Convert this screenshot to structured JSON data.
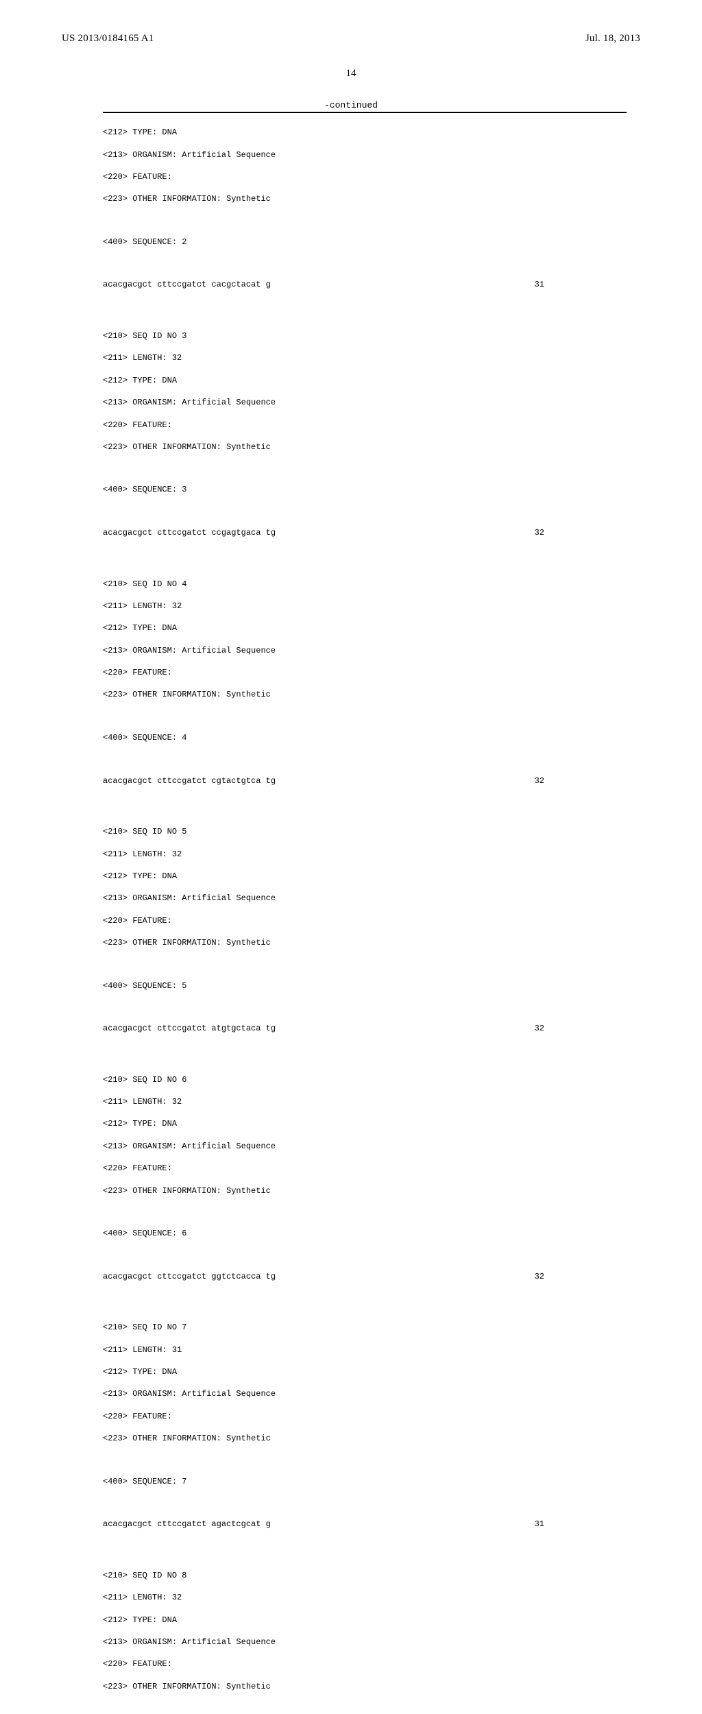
{
  "header": {
    "pub_number": "US 2013/0184165 A1",
    "pub_date": "Jul. 18, 2013"
  },
  "page_number": "14",
  "continued_label": "-continued",
  "listing": {
    "pre_block": [
      "<212> TYPE: DNA",
      "<213> ORGANISM: Artificial Sequence",
      "<220> FEATURE:",
      "<223> OTHER INFORMATION: Synthetic"
    ],
    "pre_sequence_label": "<400> SEQUENCE: 2",
    "pre_sequence": {
      "seq": "acacgacgct cttccgatct cacgctacat g",
      "len": "31"
    },
    "entries": [
      {
        "meta": [
          "<210> SEQ ID NO 3",
          "<211> LENGTH: 32",
          "<212> TYPE: DNA",
          "<213> ORGANISM: Artificial Sequence",
          "<220> FEATURE:",
          "<223> OTHER INFORMATION: Synthetic"
        ],
        "seq_label": "<400> SEQUENCE: 3",
        "sequence": {
          "seq": "acacgacgct cttccgatct ccgagtgaca tg",
          "len": "32"
        }
      },
      {
        "meta": [
          "<210> SEQ ID NO 4",
          "<211> LENGTH: 32",
          "<212> TYPE: DNA",
          "<213> ORGANISM: Artificial Sequence",
          "<220> FEATURE:",
          "<223> OTHER INFORMATION: Synthetic"
        ],
        "seq_label": "<400> SEQUENCE: 4",
        "sequence": {
          "seq": "acacgacgct cttccgatct cgtactgtca tg",
          "len": "32"
        }
      },
      {
        "meta": [
          "<210> SEQ ID NO 5",
          "<211> LENGTH: 32",
          "<212> TYPE: DNA",
          "<213> ORGANISM: Artificial Sequence",
          "<220> FEATURE:",
          "<223> OTHER INFORMATION: Synthetic"
        ],
        "seq_label": "<400> SEQUENCE: 5",
        "sequence": {
          "seq": "acacgacgct cttccgatct atgtgctaca tg",
          "len": "32"
        }
      },
      {
        "meta": [
          "<210> SEQ ID NO 6",
          "<211> LENGTH: 32",
          "<212> TYPE: DNA",
          "<213> ORGANISM: Artificial Sequence",
          "<220> FEATURE:",
          "<223> OTHER INFORMATION: Synthetic"
        ],
        "seq_label": "<400> SEQUENCE: 6",
        "sequence": {
          "seq": "acacgacgct cttccgatct ggtctcacca tg",
          "len": "32"
        }
      },
      {
        "meta": [
          "<210> SEQ ID NO 7",
          "<211> LENGTH: 31",
          "<212> TYPE: DNA",
          "<213> ORGANISM: Artificial Sequence",
          "<220> FEATURE:",
          "<223> OTHER INFORMATION: Synthetic"
        ],
        "seq_label": "<400> SEQUENCE: 7",
        "sequence": {
          "seq": "acacgacgct cttccgatct agactcgcat g",
          "len": "31"
        }
      },
      {
        "meta": [
          "<210> SEQ ID NO 8",
          "<211> LENGTH: 32",
          "<212> TYPE: DNA",
          "<213> ORGANISM: Artificial Sequence",
          "<220> FEATURE:",
          "<223> OTHER INFORMATION: Synthetic"
        ],
        "seq_label": null,
        "sequence": null
      }
    ]
  }
}
